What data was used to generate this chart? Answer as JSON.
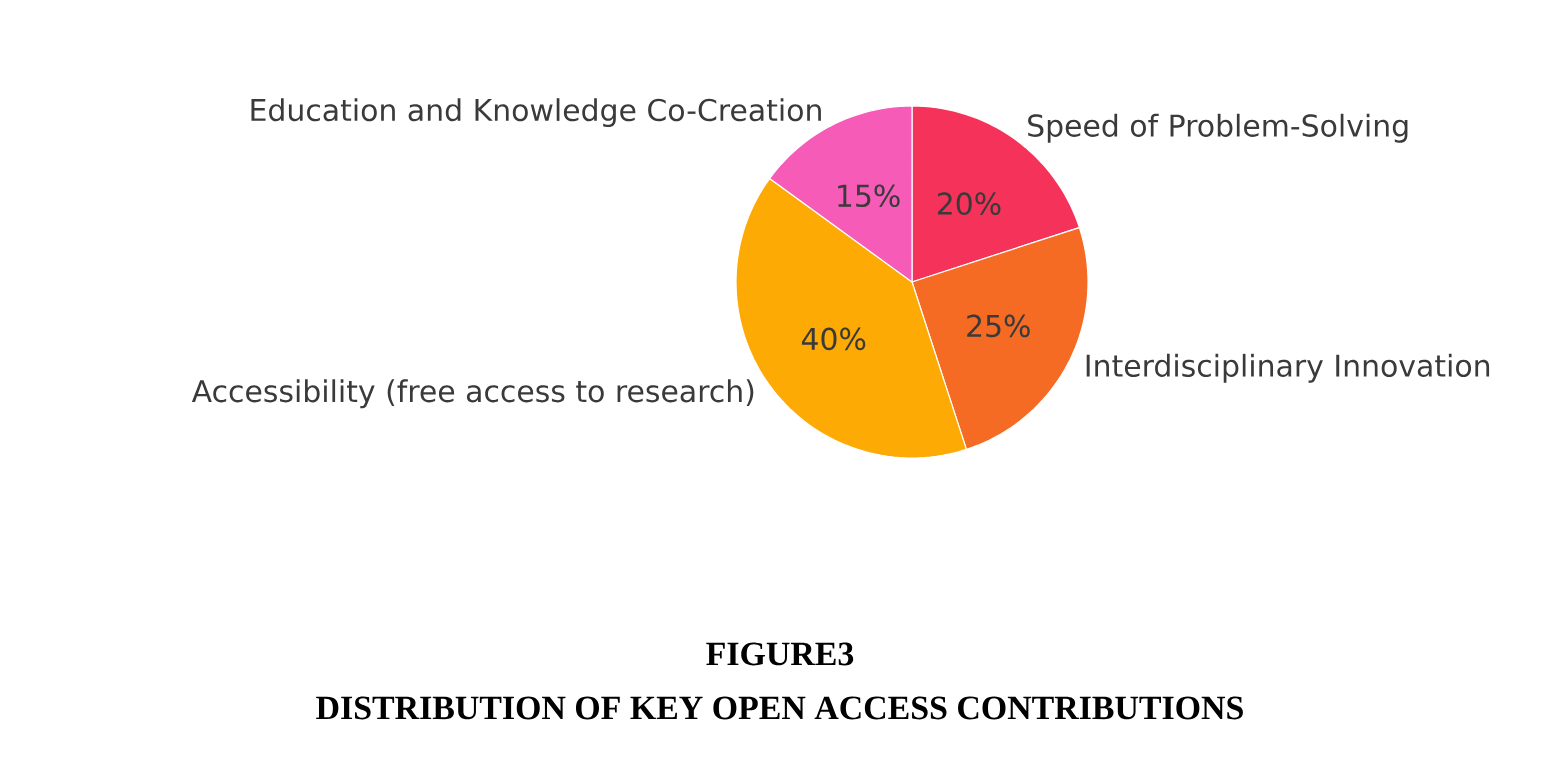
{
  "chart_data": {
    "type": "pie",
    "title": "FIGURE3",
    "subtitle": "DISTRIBUTION OF KEY OPEN ACCESS CONTRIBUTIONS",
    "categories": [
      "Speed of Problem-Solving",
      "Interdisciplinary Innovation",
      "Accessibility (free access to research)",
      "Education and Knowledge Co-Creation"
    ],
    "values": [
      20,
      25,
      40,
      15
    ],
    "value_labels": [
      "20%",
      "25%",
      "40%",
      "15%"
    ],
    "colors": [
      "#f5335a",
      "#f56b24",
      "#fdaa05",
      "#f65bb8"
    ]
  }
}
